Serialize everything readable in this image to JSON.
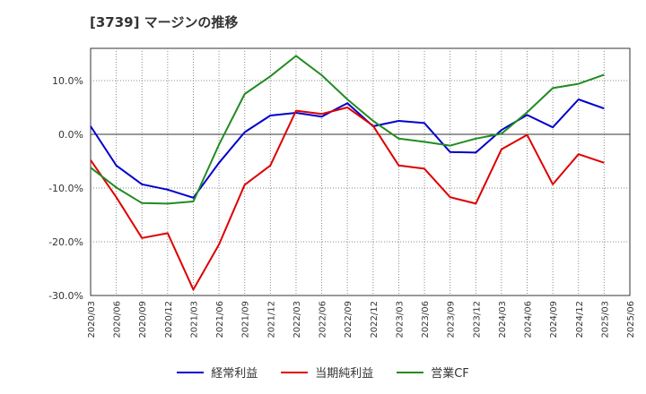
{
  "chart_data": {
    "type": "line",
    "title": "[3739]  マージンの推移",
    "xlabel": "",
    "ylabel": "",
    "ylim": [
      -30,
      16
    ],
    "y_ticks": [
      10,
      0,
      -10,
      -20,
      -30
    ],
    "y_tick_labels": [
      "10.0%",
      "0.0%",
      "-10.0%",
      "-20.0%",
      "-30.0%"
    ],
    "x_tick_labels": [
      "2020/03",
      "2020/06",
      "2020/09",
      "2020/12",
      "2021/03",
      "2021/06",
      "2021/09",
      "2021/12",
      "2022/03",
      "2022/06",
      "2022/09",
      "2022/12",
      "2023/03",
      "2023/06",
      "2023/09",
      "2023/12",
      "2024/03",
      "2024/06",
      "2024/09",
      "2024/12",
      "2025/03",
      "2025/06"
    ],
    "grid": true,
    "legend_position": "bottom",
    "series": [
      {
        "name": "経常利益",
        "color": "#0000cc",
        "values": [
          1.5,
          -5.8,
          -9.3,
          -10.3,
          -11.8,
          -5.3,
          0.4,
          3.5,
          4.0,
          3.3,
          5.8,
          1.5,
          2.5,
          2.1,
          -3.3,
          -3.4,
          0.8,
          3.6,
          1.3,
          6.5,
          4.8,
          null
        ]
      },
      {
        "name": "当期純利益",
        "color": "#dd0000",
        "values": [
          -4.8,
          -11.7,
          -19.3,
          -18.4,
          -28.9,
          -20.5,
          -9.4,
          -5.8,
          4.4,
          3.8,
          5.0,
          1.6,
          -5.8,
          -6.4,
          -11.7,
          -12.9,
          -2.8,
          -0.1,
          -9.3,
          -3.7,
          -5.3,
          null
        ]
      },
      {
        "name": "営業CF",
        "color": "#228b22",
        "values": [
          -6.2,
          -9.9,
          -12.8,
          -12.9,
          -12.5,
          -1.9,
          7.5,
          10.8,
          14.6,
          11.0,
          6.5,
          2.5,
          -0.8,
          -1.4,
          -2.1,
          -0.8,
          0.1,
          4.1,
          8.6,
          9.4,
          11.1,
          null
        ]
      }
    ]
  }
}
